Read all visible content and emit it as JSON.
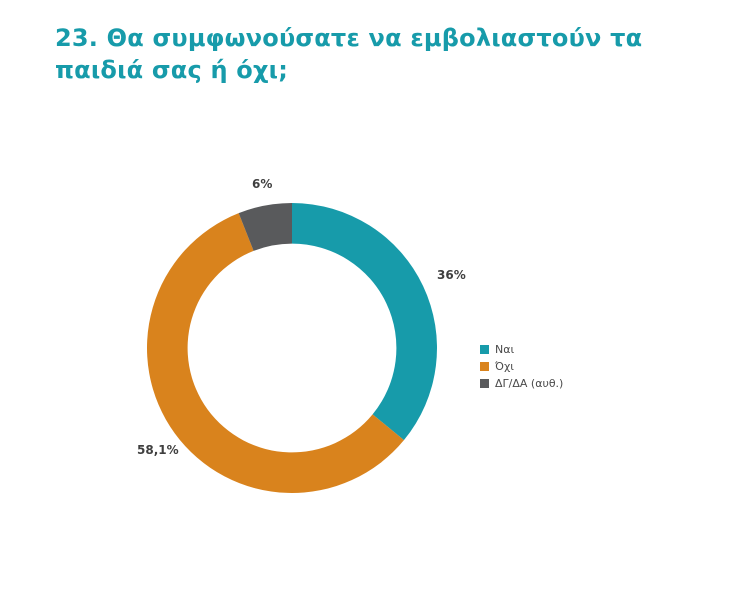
{
  "title": "23. Θα συμφωνούσατε να εμβολιαστούν τα παιδιά σας ή όχι;",
  "colors": {
    "title": "#179BAA",
    "background": "#ffffff",
    "label_text": "#3f3f3f"
  },
  "chart_data": {
    "type": "pie",
    "variant": "donut",
    "title": "23. Θα συμφωνούσατε να εμβολιαστούν τα παιδιά σας ή όχι;",
    "start_angle_deg": 0,
    "direction": "clockwise",
    "inner_radius_ratio": 0.72,
    "legend_position": "right",
    "grid": false,
    "segments": [
      {
        "label": "Ναι",
        "value": 36,
        "display": "36%",
        "color": "#179BAA"
      },
      {
        "label": "Όχι",
        "value": 58.1,
        "display": "58,1%",
        "color": "#D9831D"
      },
      {
        "label": "ΔΓ/ΔΑ (αυθ.)",
        "value": 6,
        "display": "6%",
        "color": "#595A5C"
      }
    ]
  }
}
